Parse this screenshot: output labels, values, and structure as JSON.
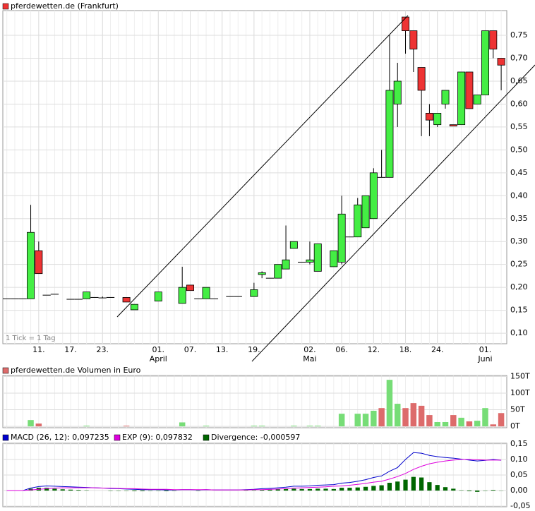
{
  "chart_data": [
    {
      "type": "candlestick",
      "title": "pferdewetten.de (Frankfurt)",
      "note": "1 Tick = 1 Tag",
      "up_color": "#44ee44",
      "down_color": "#ee3333",
      "grid": true,
      "xlim": [
        -0.5,
        62.7
      ],
      "ylim": [
        0.077,
        0.804
      ],
      "xticks": [
        {
          "value": 4,
          "label": "11."
        },
        {
          "value": 8,
          "label": "17."
        },
        {
          "value": 12,
          "label": "23."
        },
        {
          "value": 19,
          "label": "01."
        },
        {
          "value": 23,
          "label": "07."
        },
        {
          "value": 27,
          "label": "13."
        },
        {
          "value": 31,
          "label": "19."
        },
        {
          "value": 38,
          "label": "02."
        },
        {
          "value": 42,
          "label": "06."
        },
        {
          "value": 46,
          "label": "12."
        },
        {
          "value": 50,
          "label": "18."
        },
        {
          "value": 54,
          "label": "24."
        },
        {
          "value": 60,
          "label": "01."
        }
      ],
      "month_labels": [
        {
          "value": 19,
          "label": "April"
        },
        {
          "value": 38,
          "label": "Mai"
        },
        {
          "value": 60,
          "label": "Juni"
        }
      ],
      "yticks": [
        {
          "value": 0.1,
          "label": "0,10"
        },
        {
          "value": 0.15,
          "label": "0,15"
        },
        {
          "value": 0.2,
          "label": "0,20"
        },
        {
          "value": 0.25,
          "label": "0,25"
        },
        {
          "value": 0.3,
          "label": "0,30"
        },
        {
          "value": 0.35,
          "label": "0,35"
        },
        {
          "value": 0.4,
          "label": "0,40"
        },
        {
          "value": 0.45,
          "label": "0,45"
        },
        {
          "value": 0.5,
          "label": "0,50"
        },
        {
          "value": 0.55,
          "label": "0,55"
        },
        {
          "value": 0.6,
          "label": "0,60"
        },
        {
          "value": 0.65,
          "label": "0,65"
        },
        {
          "value": 0.7,
          "label": "0,70"
        },
        {
          "value": 0.75,
          "label": "0,75"
        }
      ],
      "x": [
        0,
        1,
        2,
        3,
        4,
        5,
        6,
        8,
        9,
        10,
        11,
        12,
        13,
        15,
        16,
        19,
        22,
        23,
        24,
        25,
        26,
        28,
        29,
        31,
        32,
        33,
        34,
        35,
        36,
        37,
        38,
        39,
        41,
        42,
        43,
        44,
        45,
        46,
        47,
        48,
        49,
        50,
        51,
        52,
        53,
        54,
        55,
        56,
        57,
        58,
        59,
        60,
        61,
        62
      ],
      "open": [
        0.175,
        0.175,
        0.175,
        0.175,
        0.28,
        0.183,
        0.185,
        0.174,
        0.174,
        0.175,
        0.178,
        0.177,
        0.178,
        0.178,
        0.151,
        0.17,
        0.165,
        0.205,
        0.175,
        0.175,
        0.175,
        0.18,
        0.18,
        0.18,
        0.228,
        0.22,
        0.22,
        0.24,
        0.285,
        0.255,
        0.255,
        0.235,
        0.245,
        0.255,
        0.31,
        0.31,
        0.33,
        0.35,
        0.44,
        0.44,
        0.6,
        0.79,
        0.76,
        0.68,
        0.58,
        0.555,
        0.6,
        0.555,
        0.555,
        0.67,
        0.6,
        0.62,
        0.76,
        0.7
      ],
      "high": [
        0.175,
        0.175,
        0.175,
        0.38,
        0.3,
        0.183,
        0.185,
        0.174,
        0.174,
        0.19,
        0.178,
        0.18,
        0.178,
        0.178,
        0.163,
        0.19,
        0.245,
        0.205,
        0.175,
        0.2,
        0.175,
        0.18,
        0.18,
        0.21,
        0.235,
        0.22,
        0.25,
        0.335,
        0.3,
        0.255,
        0.3,
        0.295,
        0.28,
        0.4,
        0.31,
        0.395,
        0.4,
        0.46,
        0.5,
        0.75,
        0.69,
        0.79,
        0.76,
        0.68,
        0.6,
        0.58,
        0.63,
        0.555,
        0.67,
        0.67,
        0.62,
        0.76,
        0.76,
        0.7
      ],
      "low": [
        0.175,
        0.175,
        0.175,
        0.175,
        0.23,
        0.183,
        0.185,
        0.174,
        0.174,
        0.175,
        0.178,
        0.177,
        0.178,
        0.168,
        0.151,
        0.17,
        0.165,
        0.193,
        0.175,
        0.175,
        0.175,
        0.18,
        0.18,
        0.18,
        0.22,
        0.22,
        0.22,
        0.24,
        0.285,
        0.255,
        0.25,
        0.235,
        0.245,
        0.25,
        0.31,
        0.31,
        0.33,
        0.35,
        0.44,
        0.44,
        0.55,
        0.71,
        0.67,
        0.53,
        0.53,
        0.55,
        0.59,
        0.552,
        0.555,
        0.59,
        0.6,
        0.62,
        0.7,
        0.63
      ],
      "close": [
        0.175,
        0.175,
        0.175,
        0.32,
        0.23,
        0.183,
        0.185,
        0.174,
        0.174,
        0.19,
        0.178,
        0.177,
        0.178,
        0.168,
        0.163,
        0.19,
        0.2,
        0.193,
        0.175,
        0.2,
        0.175,
        0.18,
        0.18,
        0.195,
        0.232,
        0.22,
        0.25,
        0.26,
        0.3,
        0.255,
        0.26,
        0.295,
        0.28,
        0.36,
        0.31,
        0.38,
        0.4,
        0.45,
        0.44,
        0.63,
        0.65,
        0.76,
        0.72,
        0.63,
        0.565,
        0.58,
        0.63,
        0.552,
        0.67,
        0.59,
        0.62,
        0.76,
        0.72,
        0.685
      ]
    },
    {
      "type": "bar",
      "title": "pferdewetten.de Volumen in Euro",
      "grid": true,
      "xlim": [
        -0.5,
        62.7
      ],
      "ylim": [
        -4000,
        153000
      ],
      "yticks": [
        {
          "value": 0,
          "label": "0T"
        },
        {
          "value": 50000,
          "label": "50T"
        },
        {
          "value": 100000,
          "label": "100T"
        },
        {
          "value": 150000,
          "label": "150T"
        }
      ],
      "x": [
        3,
        4,
        10,
        15,
        22,
        25,
        31,
        32,
        36,
        38,
        39,
        42,
        44,
        45,
        46,
        47,
        48,
        49,
        50,
        51,
        52,
        53,
        54,
        55,
        56,
        57,
        58,
        59,
        60,
        61,
        62
      ],
      "values": [
        19000,
        8500,
        2000,
        2000,
        12000,
        2000,
        2000,
        2000,
        2000,
        2000,
        2000,
        38000,
        38000,
        38000,
        47000,
        55000,
        140000,
        68000,
        55000,
        70000,
        62000,
        34000,
        13000,
        13000,
        34000,
        26000,
        15000,
        17000,
        55000,
        6000,
        40000
      ],
      "colors": [
        "#77dd77",
        "#dd6b6b",
        "#77dd77",
        "#dd6b6b",
        "#77dd77",
        "#77dd77",
        "#77dd77",
        "#77dd77",
        "#77dd77",
        "#77dd77",
        "#77dd77",
        "#77dd77",
        "#77dd77",
        "#77dd77",
        "#77dd77",
        "#dd6b6b",
        "#77dd77",
        "#77dd77",
        "#dd6b6b",
        "#dd6b6b",
        "#dd6b6b",
        "#dd6b6b",
        "#77dd77",
        "#77dd77",
        "#dd6b6b",
        "#77dd77",
        "#dd6b6b",
        "#77dd77",
        "#77dd77",
        "#dd6b6b",
        "#dd6b6b"
      ]
    },
    {
      "type": "macd",
      "grid": true,
      "xlim": [
        -0.5,
        62.7
      ],
      "ylim": [
        -0.052,
        0.152
      ],
      "yticks": [
        {
          "value": -0.05,
          "label": "-0,05"
        },
        {
          "value": 0,
          "label": "0,00"
        },
        {
          "value": 0.05,
          "label": "0,05"
        },
        {
          "value": 0.1,
          "label": "0,10"
        },
        {
          "value": 0.15,
          "label": "0,15"
        }
      ],
      "x": [
        0,
        1,
        2,
        3,
        4,
        5,
        6,
        7,
        8,
        9,
        10,
        11,
        12,
        13,
        14,
        15,
        16,
        17,
        18,
        19,
        20,
        21,
        22,
        23,
        24,
        25,
        26,
        27,
        28,
        29,
        30,
        31,
        32,
        33,
        34,
        35,
        36,
        37,
        38,
        39,
        40,
        41,
        42,
        43,
        44,
        45,
        46,
        47,
        48,
        49,
        50,
        51,
        52,
        53,
        54,
        55,
        56,
        57,
        58,
        59,
        60,
        61,
        62
      ],
      "series": [
        {
          "name": "MACD (26, 12): 0,097235",
          "color": "#0000cc",
          "kind": "line",
          "values": [
            0,
            0,
            0,
            0.008,
            0.013,
            0.015,
            0.014,
            0.013,
            0.012,
            0.011,
            0.01,
            0.009,
            0.008,
            0.007,
            0.006,
            0.005,
            0.004,
            0.003,
            0.003,
            0.003,
            0.002,
            0.002,
            0.003,
            0.003,
            0.002,
            0.003,
            0.002,
            0.002,
            0.002,
            0.002,
            0.003,
            0.004,
            0.006,
            0.007,
            0.009,
            0.011,
            0.014,
            0.014,
            0.015,
            0.017,
            0.018,
            0.019,
            0.024,
            0.026,
            0.03,
            0.035,
            0.042,
            0.047,
            0.062,
            0.074,
            0.1,
            0.122,
            0.12,
            0.113,
            0.109,
            0.106,
            0.104,
            0.101,
            0.098,
            0.095,
            0.097,
            0.1,
            0.097235
          ]
        },
        {
          "name": "EXP (9): 0,097832",
          "color": "#dd00dd",
          "kind": "line",
          "values": [
            0,
            0,
            0,
            0.002,
            0.004,
            0.006,
            0.008,
            0.009,
            0.009,
            0.009,
            0.009,
            0.009,
            0.008,
            0.008,
            0.007,
            0.006,
            0.006,
            0.005,
            0.004,
            0.004,
            0.004,
            0.003,
            0.003,
            0.003,
            0.003,
            0.003,
            0.002,
            0.002,
            0.002,
            0.002,
            0.002,
            0.003,
            0.003,
            0.004,
            0.005,
            0.006,
            0.008,
            0.009,
            0.01,
            0.011,
            0.012,
            0.014,
            0.015,
            0.017,
            0.02,
            0.023,
            0.027,
            0.03,
            0.037,
            0.045,
            0.055,
            0.068,
            0.078,
            0.086,
            0.091,
            0.095,
            0.098,
            0.1,
            0.1,
            0.099,
            0.098,
            0.098,
            0.097832
          ]
        },
        {
          "name": "Divergence: -0,000597",
          "color": "#006600",
          "kind": "bar",
          "values": [
            0,
            0,
            0,
            0.006,
            0.009,
            0.009,
            0.006,
            0.004,
            0.003,
            0.002,
            0.001,
            0,
            0,
            -0.001,
            -0.001,
            -0.001,
            -0.002,
            -0.002,
            -0.001,
            -0.001,
            -0.002,
            -0.001,
            0,
            0,
            -0.001,
            0,
            0,
            0,
            0,
            0,
            0.001,
            0.001,
            0.003,
            0.003,
            0.004,
            0.005,
            0.006,
            0.005,
            0.005,
            0.006,
            0.006,
            0.005,
            0.009,
            0.009,
            0.01,
            0.012,
            0.015,
            0.017,
            0.025,
            0.029,
            0.035,
            0.044,
            0.042,
            0.027,
            0.018,
            0.011,
            0.006,
            0.001,
            -0.002,
            -0.004,
            -0.001,
            0.002,
            -0.000597
          ]
        }
      ]
    }
  ]
}
